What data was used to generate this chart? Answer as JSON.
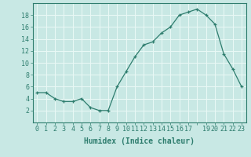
{
  "x": [
    0,
    1,
    2,
    3,
    4,
    5,
    6,
    7,
    8,
    9,
    10,
    11,
    12,
    13,
    14,
    15,
    16,
    17,
    18,
    19,
    20,
    21,
    22,
    23
  ],
  "y": [
    5,
    5,
    4,
    3.5,
    3.5,
    4,
    2.5,
    2,
    2,
    6,
    8.5,
    11,
    13,
    13.5,
    15,
    16,
    18,
    18.5,
    19,
    18,
    16.5,
    11.5,
    9,
    6
  ],
  "line_color": "#2e7d6e",
  "marker": "+",
  "bg_color": "#c8e8e4",
  "grid_color": "#e8f8f5",
  "xlabel": "Humidex (Indice chaleur)",
  "xlabel_fontsize": 7,
  "tick_fontsize": 6,
  "xlim": [
    -0.5,
    23.5
  ],
  "ylim": [
    0,
    20
  ],
  "yticks": [
    2,
    4,
    6,
    8,
    10,
    12,
    14,
    16,
    18
  ],
  "xtick_labels": [
    "0",
    "1",
    "2",
    "3",
    "4",
    "5",
    "6",
    "7",
    "8",
    "9",
    "10",
    "11",
    "12",
    "13",
    "14",
    "15",
    "16",
    "17",
    "",
    "19",
    "20",
    "21",
    "22",
    "23"
  ]
}
